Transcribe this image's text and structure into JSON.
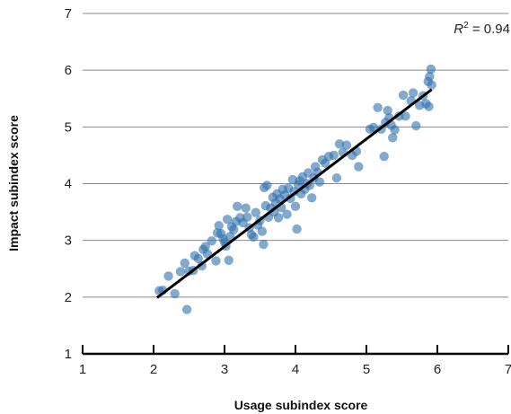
{
  "chart_data": {
    "type": "scatter",
    "title": "",
    "xlabel": "Usage subindex score",
    "ylabel": "Impact subindex score",
    "xlim": [
      1,
      7
    ],
    "ylim": [
      1,
      7
    ],
    "xticks": [
      "1",
      "2",
      "3",
      "4",
      "5",
      "6",
      "7"
    ],
    "yticks": [
      "1",
      "2",
      "3",
      "4",
      "5",
      "6",
      "7"
    ],
    "grid": "horizontal",
    "annotation": {
      "r_label": "R",
      "r_sup": "2",
      "r_value": " = 0.94"
    },
    "colors": {
      "points": "#2e6fad",
      "fit_line": "#000000",
      "grid": "#888888"
    },
    "fit_line": {
      "x": [
        2.05,
        5.92
      ],
      "y": [
        1.99,
        5.66
      ]
    },
    "points": [
      {
        "x": 2.08,
        "y": 2.11
      },
      {
        "x": 2.13,
        "y": 2.12
      },
      {
        "x": 2.21,
        "y": 2.37
      },
      {
        "x": 2.3,
        "y": 2.06
      },
      {
        "x": 2.38,
        "y": 2.45
      },
      {
        "x": 2.44,
        "y": 2.6
      },
      {
        "x": 2.47,
        "y": 1.78
      },
      {
        "x": 2.5,
        "y": 2.46
      },
      {
        "x": 2.56,
        "y": 2.47
      },
      {
        "x": 2.58,
        "y": 2.73
      },
      {
        "x": 2.63,
        "y": 2.68
      },
      {
        "x": 2.68,
        "y": 2.55
      },
      {
        "x": 2.7,
        "y": 2.84
      },
      {
        "x": 2.73,
        "y": 2.89
      },
      {
        "x": 2.76,
        "y": 2.76
      },
      {
        "x": 2.82,
        "y": 2.99
      },
      {
        "x": 2.88,
        "y": 2.64
      },
      {
        "x": 2.9,
        "y": 3.13
      },
      {
        "x": 2.92,
        "y": 3.26
      },
      {
        "x": 2.95,
        "y": 3.12
      },
      {
        "x": 2.98,
        "y": 3.03
      },
      {
        "x": 3.0,
        "y": 2.97
      },
      {
        "x": 3.02,
        "y": 2.9
      },
      {
        "x": 3.04,
        "y": 3.37
      },
      {
        "x": 3.06,
        "y": 2.65
      },
      {
        "x": 3.08,
        "y": 3.07
      },
      {
        "x": 3.1,
        "y": 3.24
      },
      {
        "x": 3.13,
        "y": 3.19
      },
      {
        "x": 3.16,
        "y": 3.33
      },
      {
        "x": 3.18,
        "y": 3.6
      },
      {
        "x": 3.22,
        "y": 3.4
      },
      {
        "x": 3.26,
        "y": 3.31
      },
      {
        "x": 3.3,
        "y": 3.57
      },
      {
        "x": 3.32,
        "y": 3.41
      },
      {
        "x": 3.35,
        "y": 3.22
      },
      {
        "x": 3.38,
        "y": 3.1
      },
      {
        "x": 3.41,
        "y": 3.06
      },
      {
        "x": 3.44,
        "y": 3.49
      },
      {
        "x": 3.47,
        "y": 3.27
      },
      {
        "x": 3.5,
        "y": 3.35
      },
      {
        "x": 3.53,
        "y": 3.16
      },
      {
        "x": 3.55,
        "y": 2.93
      },
      {
        "x": 3.56,
        "y": 3.93
      },
      {
        "x": 3.58,
        "y": 3.61
      },
      {
        "x": 3.6,
        "y": 3.97
      },
      {
        "x": 3.62,
        "y": 3.41
      },
      {
        "x": 3.65,
        "y": 3.57
      },
      {
        "x": 3.68,
        "y": 3.76
      },
      {
        "x": 3.7,
        "y": 3.5
      },
      {
        "x": 3.72,
        "y": 3.66
      },
      {
        "x": 3.74,
        "y": 3.82
      },
      {
        "x": 3.76,
        "y": 3.4
      },
      {
        "x": 3.78,
        "y": 3.73
      },
      {
        "x": 3.8,
        "y": 3.58
      },
      {
        "x": 3.82,
        "y": 3.9
      },
      {
        "x": 3.85,
        "y": 3.8
      },
      {
        "x": 3.88,
        "y": 3.46
      },
      {
        "x": 3.9,
        "y": 3.92
      },
      {
        "x": 3.93,
        "y": 3.74
      },
      {
        "x": 3.96,
        "y": 4.07
      },
      {
        "x": 3.98,
        "y": 3.86
      },
      {
        "x": 4.0,
        "y": 3.6
      },
      {
        "x": 4.02,
        "y": 3.2
      },
      {
        "x": 4.04,
        "y": 3.98
      },
      {
        "x": 4.06,
        "y": 4.05
      },
      {
        "x": 4.08,
        "y": 3.82
      },
      {
        "x": 4.1,
        "y": 4.12
      },
      {
        "x": 4.13,
        "y": 3.9
      },
      {
        "x": 4.16,
        "y": 4.0
      },
      {
        "x": 4.18,
        "y": 4.19
      },
      {
        "x": 4.2,
        "y": 3.97
      },
      {
        "x": 4.23,
        "y": 3.75
      },
      {
        "x": 4.26,
        "y": 4.1
      },
      {
        "x": 4.28,
        "y": 4.3
      },
      {
        "x": 4.31,
        "y": 4.2
      },
      {
        "x": 4.34,
        "y": 4.03
      },
      {
        "x": 4.38,
        "y": 4.42
      },
      {
        "x": 4.42,
        "y": 4.36
      },
      {
        "x": 4.47,
        "y": 4.48
      },
      {
        "x": 4.54,
        "y": 4.5
      },
      {
        "x": 4.58,
        "y": 4.1
      },
      {
        "x": 4.62,
        "y": 4.7
      },
      {
        "x": 4.67,
        "y": 4.55
      },
      {
        "x": 4.72,
        "y": 4.68
      },
      {
        "x": 4.8,
        "y": 4.5
      },
      {
        "x": 4.86,
        "y": 4.57
      },
      {
        "x": 4.89,
        "y": 4.3
      },
      {
        "x": 5.05,
        "y": 4.96
      },
      {
        "x": 5.1,
        "y": 4.99
      },
      {
        "x": 5.16,
        "y": 5.34
      },
      {
        "x": 5.21,
        "y": 4.96
      },
      {
        "x": 5.25,
        "y": 4.48
      },
      {
        "x": 5.27,
        "y": 5.08
      },
      {
        "x": 5.3,
        "y": 5.29
      },
      {
        "x": 5.32,
        "y": 5.16
      },
      {
        "x": 5.35,
        "y": 5.03
      },
      {
        "x": 5.37,
        "y": 4.81
      },
      {
        "x": 5.4,
        "y": 4.95
      },
      {
        "x": 5.46,
        "y": 5.19
      },
      {
        "x": 5.52,
        "y": 5.56
      },
      {
        "x": 5.55,
        "y": 5.19
      },
      {
        "x": 5.63,
        "y": 5.46
      },
      {
        "x": 5.66,
        "y": 5.6
      },
      {
        "x": 5.7,
        "y": 5.02
      },
      {
        "x": 5.75,
        "y": 5.38
      },
      {
        "x": 5.8,
        "y": 5.55
      },
      {
        "x": 5.84,
        "y": 5.41
      },
      {
        "x": 5.87,
        "y": 5.8
      },
      {
        "x": 5.88,
        "y": 5.36
      },
      {
        "x": 5.89,
        "y": 5.89
      },
      {
        "x": 5.91,
        "y": 6.02
      },
      {
        "x": 5.92,
        "y": 5.74
      }
    ]
  }
}
